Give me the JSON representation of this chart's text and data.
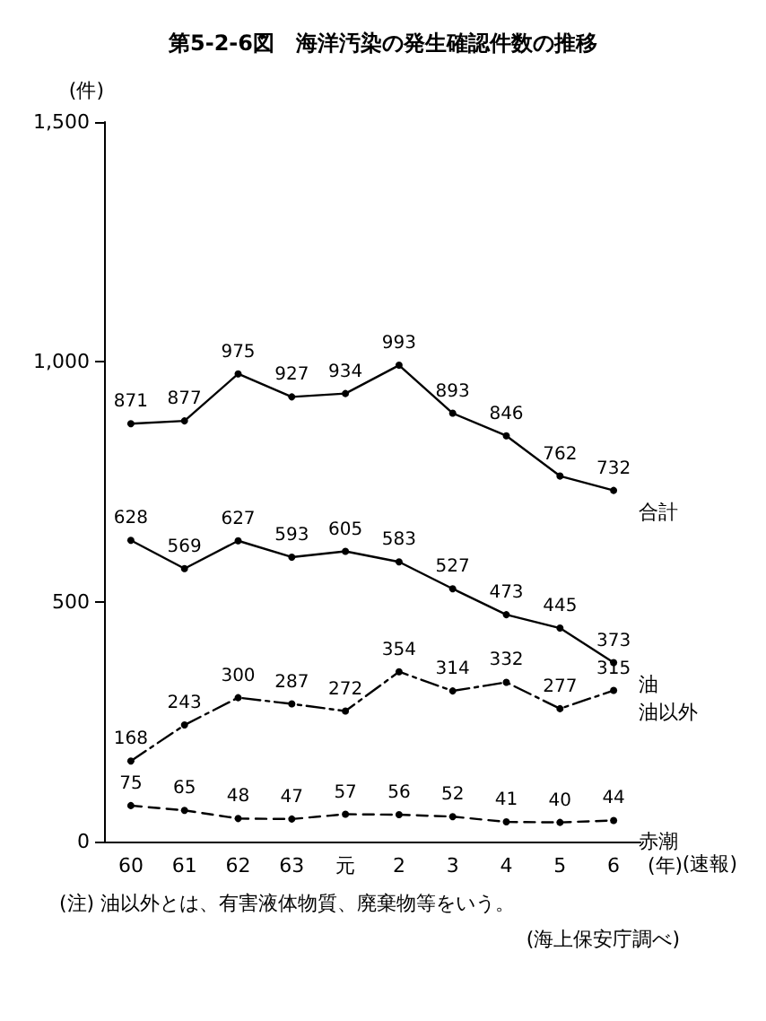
{
  "chart_data": {
    "type": "line",
    "title": "第5-2-6図　海洋汚染の発生確認件数の推移",
    "ylabel": "(件)",
    "xlabel": "(年)",
    "categories": [
      "60",
      "61",
      "62",
      "63",
      "元",
      "2",
      "3",
      "4",
      "5",
      "6"
    ],
    "series": [
      {
        "name": "合計",
        "color": "#000000",
        "line_style": "solid",
        "values": [
          871,
          877,
          975,
          927,
          934,
          993,
          893,
          846,
          762,
          732
        ]
      },
      {
        "name": "油",
        "color": "#000000",
        "line_style": "solid",
        "values": [
          628,
          569,
          627,
          593,
          605,
          583,
          527,
          473,
          445,
          373
        ]
      },
      {
        "name": "油以外",
        "color": "#000000",
        "line_style": "dashdot",
        "values": [
          168,
          243,
          300,
          287,
          272,
          354,
          314,
          332,
          277,
          315
        ]
      },
      {
        "name": "赤潮",
        "color": "#000000",
        "line_style": "dashed",
        "values": [
          75,
          65,
          48,
          47,
          57,
          56,
          52,
          41,
          40,
          44
        ]
      }
    ],
    "ylim": [
      0,
      1500
    ],
    "yticks": [
      0,
      500,
      {
        "value": 1000,
        "label": "1,000"
      },
      {
        "value": 1500,
        "label": "1,500"
      }
    ],
    "grid": false,
    "legend": false,
    "marker": "circle",
    "data_labels": true,
    "annotations": [
      "(速報)",
      "(注) 油以外とは、有害液体物質、廃棄物等をいう。",
      "(海上保安庁調べ)"
    ]
  }
}
